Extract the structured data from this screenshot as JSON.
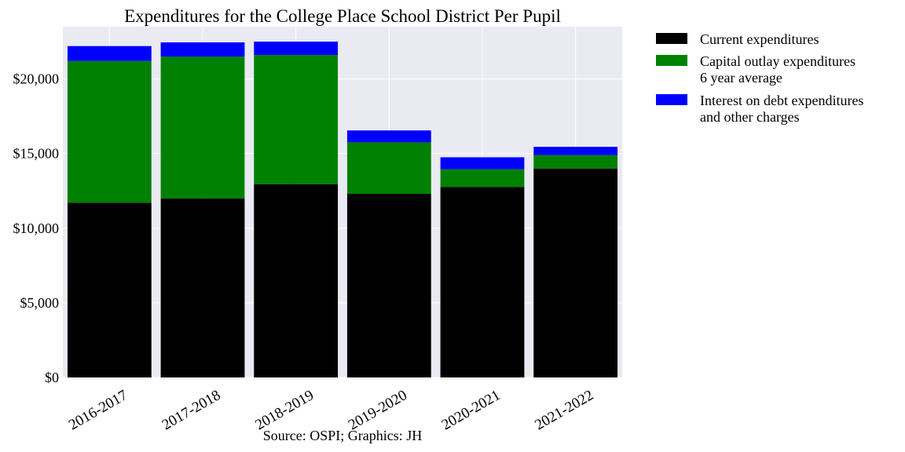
{
  "chart_data": {
    "type": "bar",
    "stacked": true,
    "title": "Expenditures for the College Place School District Per Pupil",
    "xlabel": "Source: OSPI; Graphics: JH",
    "ylabel": "",
    "categories": [
      "2016-2017",
      "2017-2018",
      "2018-2019",
      "2019-2020",
      "2020-2021",
      "2021-2022"
    ],
    "ylim": [
      0,
      23500
    ],
    "yticks": [
      0,
      5000,
      10000,
      15000,
      20000
    ],
    "ytick_labels": [
      "$0",
      "$5,000",
      "$10,000",
      "$15,000",
      "$20,000"
    ],
    "grid": true,
    "legend_position": "outside-right-top",
    "series": [
      {
        "name": "Current expenditures",
        "color": "#000000",
        "values": [
          11700,
          12000,
          12950,
          12300,
          12750,
          14000
        ]
      },
      {
        "name": "Capital outlay expenditures\n6 year average",
        "color": "#008000",
        "values": [
          9500,
          9500,
          8650,
          3450,
          1200,
          900
        ]
      },
      {
        "name": "Interest on debt expenditures\nand other charges",
        "color": "#0000ff",
        "values": [
          1000,
          950,
          900,
          800,
          800,
          550
        ]
      }
    ]
  }
}
